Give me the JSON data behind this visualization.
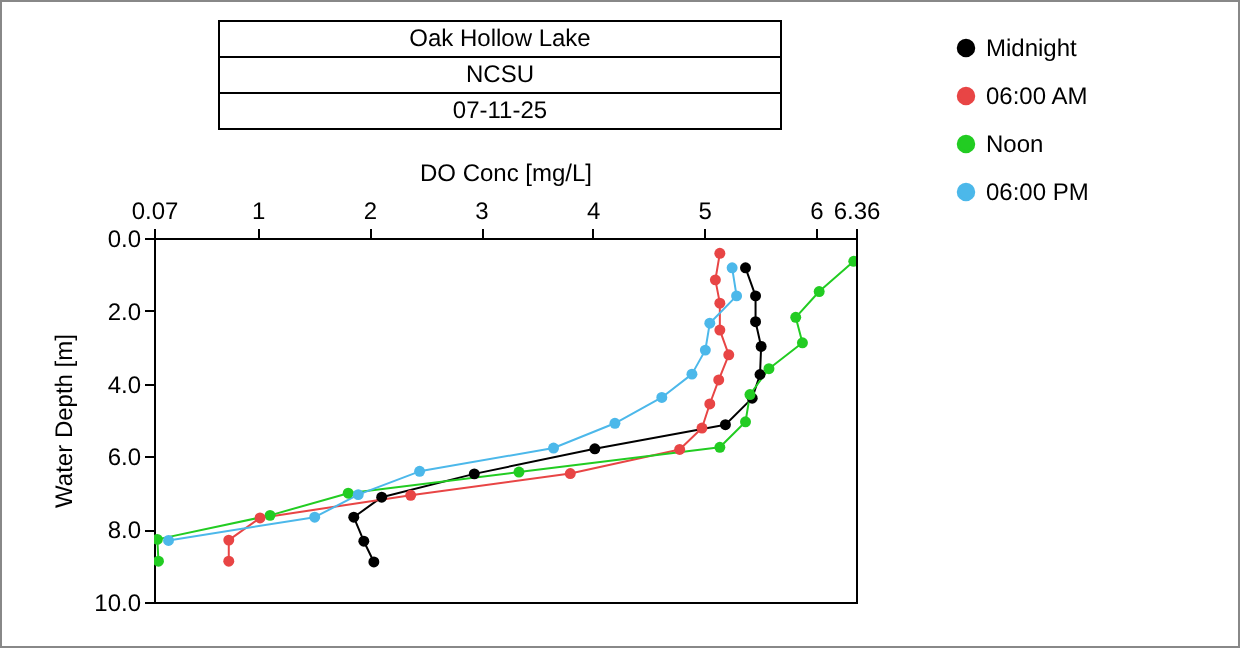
{
  "chart_data": {
    "type": "line",
    "title": "Oak Hollow Lake",
    "subtitle": "NCSU",
    "annotations": [
      "07-11-25"
    ],
    "xlabel": "DO Conc [mg/L]",
    "ylabel": "Water Depth [m]",
    "xlim": [
      0.07,
      6.36
    ],
    "xticks": [
      0.07,
      1,
      2,
      3,
      4,
      5,
      6,
      {
        "value": 6.36,
        "label": "6.36"
      }
    ],
    "ylim": [
      10,
      0
    ],
    "yticks": [
      {
        "value": 0,
        "label": "0.0"
      },
      {
        "value": 2,
        "label": "2.0"
      },
      {
        "value": 4,
        "label": "4.0"
      },
      {
        "value": 6,
        "label": "6.0"
      },
      {
        "value": 8,
        "label": "8.0"
      },
      {
        "value": 10,
        "label": "10.0"
      }
    ],
    "grid": false,
    "legend": "top right",
    "marker": "circle",
    "line_style": "solid",
    "series": [
      {
        "name": "Midnight",
        "color": "#000000",
        "x": [
          5.37,
          5.46,
          5.46,
          5.51,
          5.5,
          5.43,
          5.19,
          4.02,
          2.94,
          2.11,
          1.86,
          1.95,
          2.04
        ],
        "values": [
          0.82,
          1.59,
          2.3,
          2.98,
          3.75,
          4.4,
          5.13,
          5.79,
          6.48,
          7.12,
          7.67,
          8.33,
          8.9
        ]
      },
      {
        "name": "06:00 AM",
        "color": "#e84545",
        "x": [
          5.14,
          5.1,
          5.14,
          5.14,
          5.22,
          5.13,
          5.05,
          4.98,
          4.78,
          3.8,
          2.37,
          1.02,
          0.74,
          0.74
        ],
        "values": [
          0.42,
          1.15,
          1.79,
          2.53,
          3.21,
          3.9,
          4.56,
          5.22,
          5.81,
          6.47,
          7.07,
          7.69,
          8.3,
          8.88
        ]
      },
      {
        "name": "Noon",
        "color": "#22cc22",
        "x": [
          6.34,
          6.03,
          5.82,
          5.88,
          5.58,
          5.41,
          5.37,
          5.14,
          3.34,
          1.81,
          1.11,
          0.1,
          0.11
        ],
        "values": [
          0.64,
          1.47,
          2.18,
          2.88,
          3.59,
          4.3,
          5.05,
          5.75,
          6.43,
          7.01,
          7.62,
          8.28,
          8.88
        ]
      },
      {
        "name": "06:00 PM",
        "color": "#4cb8ea",
        "x": [
          5.25,
          5.29,
          5.05,
          5.01,
          4.89,
          4.62,
          4.2,
          3.65,
          2.45,
          1.9,
          1.51,
          0.2
        ],
        "values": [
          0.82,
          1.59,
          2.34,
          3.08,
          3.74,
          4.38,
          5.09,
          5.77,
          6.41,
          7.05,
          7.67,
          8.31
        ]
      }
    ]
  }
}
